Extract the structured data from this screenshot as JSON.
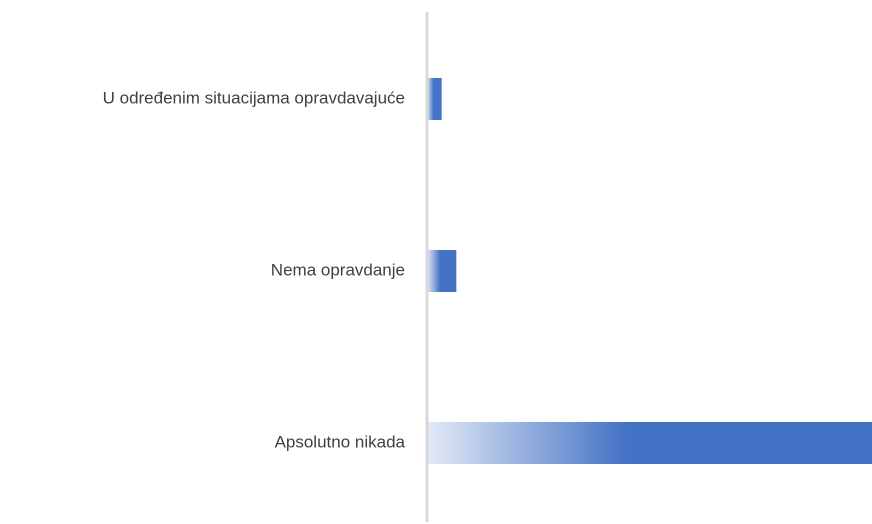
{
  "chart_data": {
    "type": "bar",
    "orientation": "horizontal",
    "categories": [
      "U određenim situacijama opravdavajuće",
      "Nema opravdanje",
      "Apsolutno nikada"
    ],
    "values": [
      3,
      6,
      91
    ],
    "color": "#4472c4",
    "xlim": [
      0,
      91
    ]
  }
}
